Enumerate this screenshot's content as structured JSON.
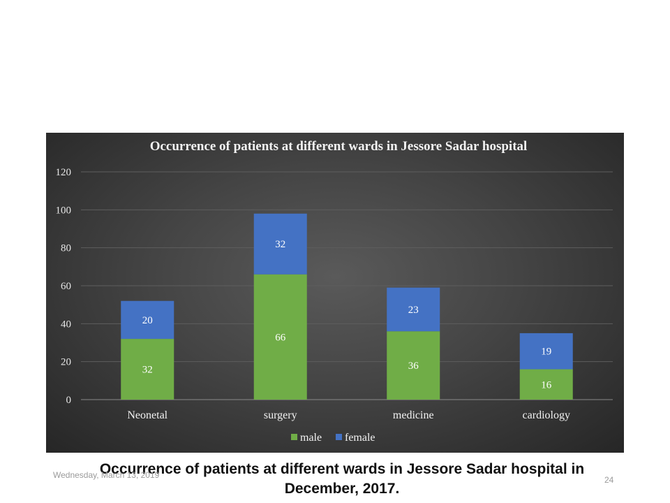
{
  "slide": {
    "caption": "Occurrence of patients at different wards in Jessore Sadar hospital in December, 2017.",
    "footer_date": "Wednesday, March 13, 2019",
    "page_number": "24"
  },
  "chart_data": {
    "type": "bar",
    "stacked": true,
    "title": "Occurrence of patients at different wards in Jessore Sadar hospital",
    "categories": [
      "Neonetal",
      "surgery",
      "medicine",
      "cardiology"
    ],
    "series": [
      {
        "name": "male",
        "values": [
          32,
          66,
          36,
          16
        ],
        "color": "#70ad47"
      },
      {
        "name": "female",
        "values": [
          20,
          32,
          23,
          19
        ],
        "color": "#4472c4"
      }
    ],
    "ylim": [
      0,
      120
    ],
    "yticks": [
      0,
      20,
      40,
      60,
      80,
      100,
      120
    ],
    "grid": true,
    "legend": "bottom",
    "data_labels": true
  }
}
